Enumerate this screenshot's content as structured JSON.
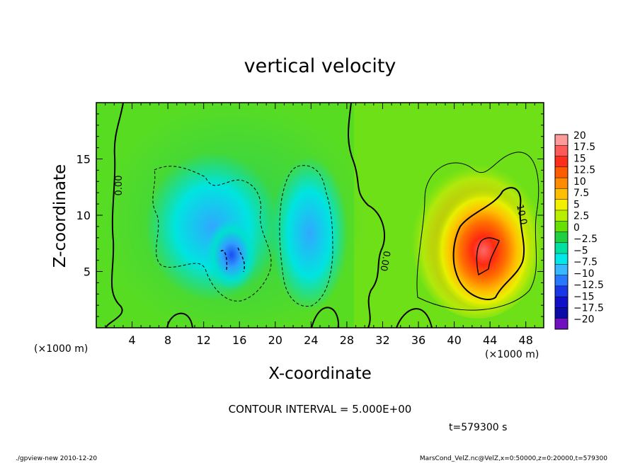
{
  "chart_data": {
    "type": "heatmap",
    "title": "vertical velocity",
    "xlabel": "X-coordinate",
    "ylabel": "Z-coordinate",
    "x_unit_left": "(×1000 m)",
    "x_unit_right": "(×1000 m)",
    "xlim": [
      0,
      50
    ],
    "ylim": [
      0,
      20
    ],
    "x_ticks": [
      4,
      8,
      12,
      16,
      20,
      24,
      28,
      32,
      36,
      40,
      44,
      48
    ],
    "y_ticks": [
      5,
      10,
      15
    ],
    "contour_interval_text": "CONTOUR INTERVAL = 5.000E+00",
    "time_text": "t=579300 s",
    "contour_labels": [
      "0.00",
      "0.00",
      "10.0"
    ],
    "colorbar": {
      "labels": [
        "20",
        "17.5",
        "15",
        "12.5",
        "10",
        "7.5",
        "5",
        "2.5",
        "0",
        "−2.5",
        "−5",
        "−7.5",
        "−10",
        "−12.5",
        "−15",
        "−17.5",
        "−20"
      ],
      "colors": [
        "#ff9a9a",
        "#ff5a5a",
        "#ff2e1a",
        "#ff5c00",
        "#ff8c00",
        "#ffbf00",
        "#f2f000",
        "#b8ee00",
        "#66e000",
        "#20d040",
        "#00e0a0",
        "#00e8e8",
        "#38b8ff",
        "#2878ff",
        "#1838e8",
        "#1010c8",
        "#0a0aa8",
        "#7010c0"
      ]
    },
    "features": [
      {
        "kind": "downdraft",
        "x_center": 15,
        "z_center": 6.5,
        "min_value": -12.5
      },
      {
        "kind": "downdraft",
        "x_center": 24,
        "z_center": 8,
        "min_value": -7.5
      },
      {
        "kind": "updraft",
        "x_center": 43,
        "z_center": 7,
        "max_value": 17.5
      }
    ]
  },
  "footer": {
    "left": "./gpview-new   2010-12-20",
    "right": "MarsCond_VelZ.nc@VelZ,x=0:50000,z=0:20000,t=579300"
  }
}
